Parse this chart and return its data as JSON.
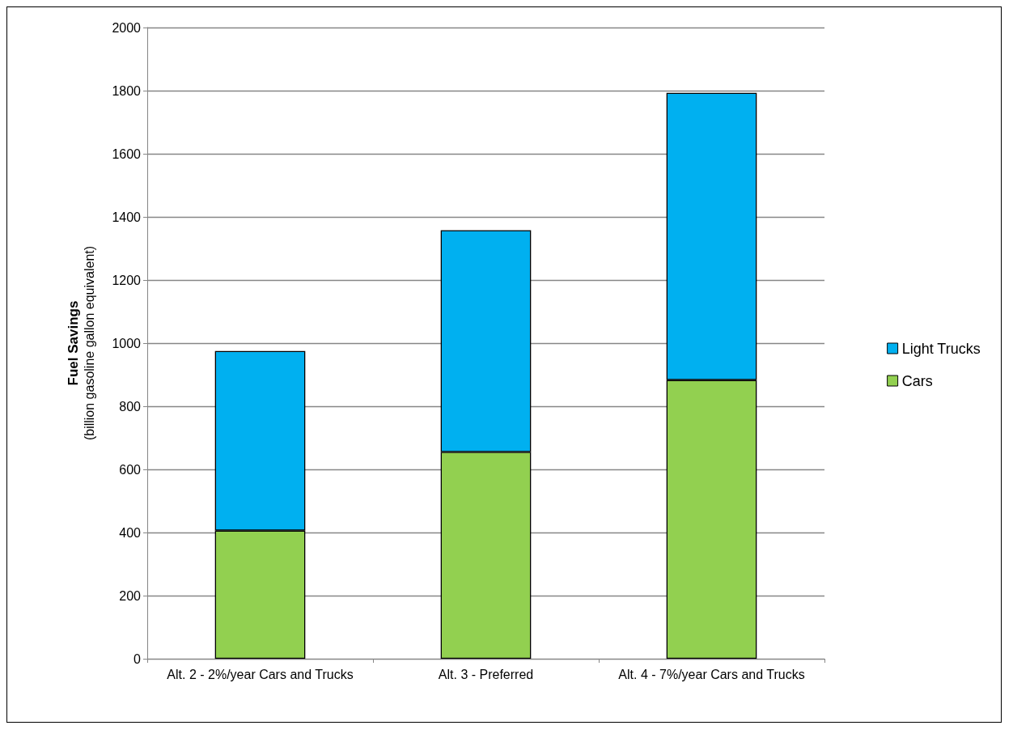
{
  "chart_data": {
    "type": "bar",
    "stacked": true,
    "ylabel": "Fuel Savings\n(billion gasoline gallon equivalent)",
    "categories": [
      "Alt. 2 - 2%/year Cars and Trucks",
      "Alt. 3 - Preferred",
      "Alt. 4 - 7%/year Cars and Trucks"
    ],
    "series": [
      {
        "name": "Cars",
        "color": "#92d050",
        "values": [
          406,
          655,
          883
        ]
      },
      {
        "name": "Light Trucks",
        "color": "#00b0f0",
        "values": [
          569,
          703,
          910
        ]
      }
    ],
    "ylim": [
      0,
      2000
    ],
    "yticks": [
      0,
      200,
      400,
      600,
      800,
      1000,
      1200,
      1400,
      1600,
      1800,
      2000
    ],
    "grid": "y",
    "legend": "right"
  }
}
